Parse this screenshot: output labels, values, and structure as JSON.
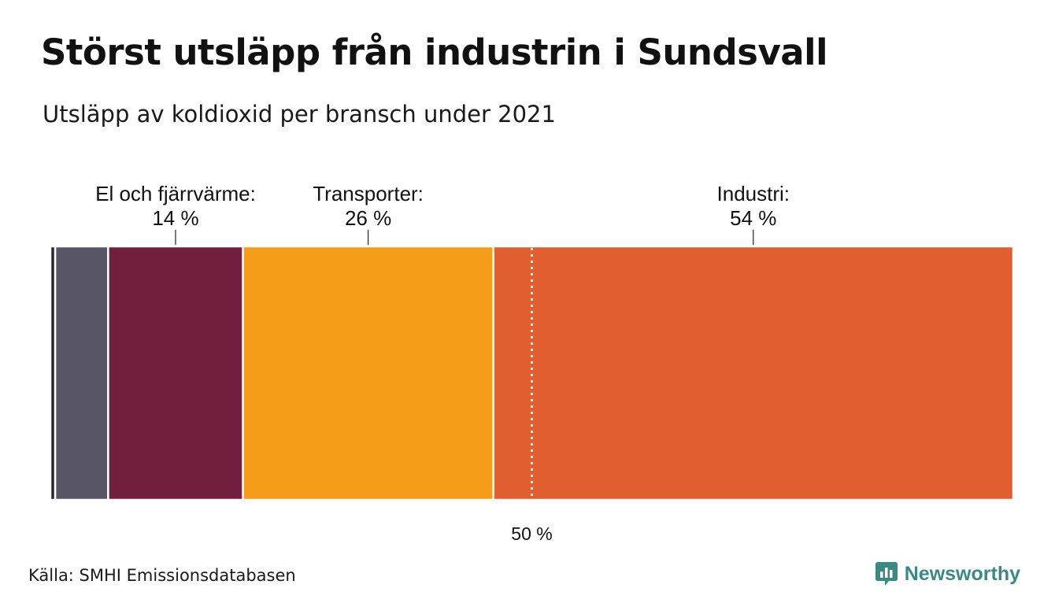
{
  "title": "Störst utsläpp från industrin i Sundsvall",
  "subtitle": "Utsläpp av koldioxid per bransch under 2021",
  "source": "Källa: SMHI Emissionsdatabasen",
  "brand": {
    "name": "Newsworthy",
    "icon": "newsworthy-logo-icon",
    "color": "#3a8a84"
  },
  "chart_data": {
    "type": "bar",
    "orientation": "horizontal-stacked-100",
    "unit": "%",
    "reference_line": {
      "value": 50,
      "label": "50 %"
    },
    "segments": [
      {
        "value": 0.5,
        "color": "#2a2535",
        "label": "",
        "value_label": ""
      },
      {
        "value": 5.5,
        "color": "#585666",
        "label": "",
        "value_label": ""
      },
      {
        "value": 14,
        "color": "#721e3e",
        "label": "El och fjärrvärme:",
        "value_label": "14 %"
      },
      {
        "value": 26,
        "color": "#f59c18",
        "label": "Transporter:",
        "value_label": "26 %"
      },
      {
        "value": 54,
        "color": "#e05e2f",
        "label": "Industri:",
        "value_label": "54 %"
      }
    ]
  }
}
